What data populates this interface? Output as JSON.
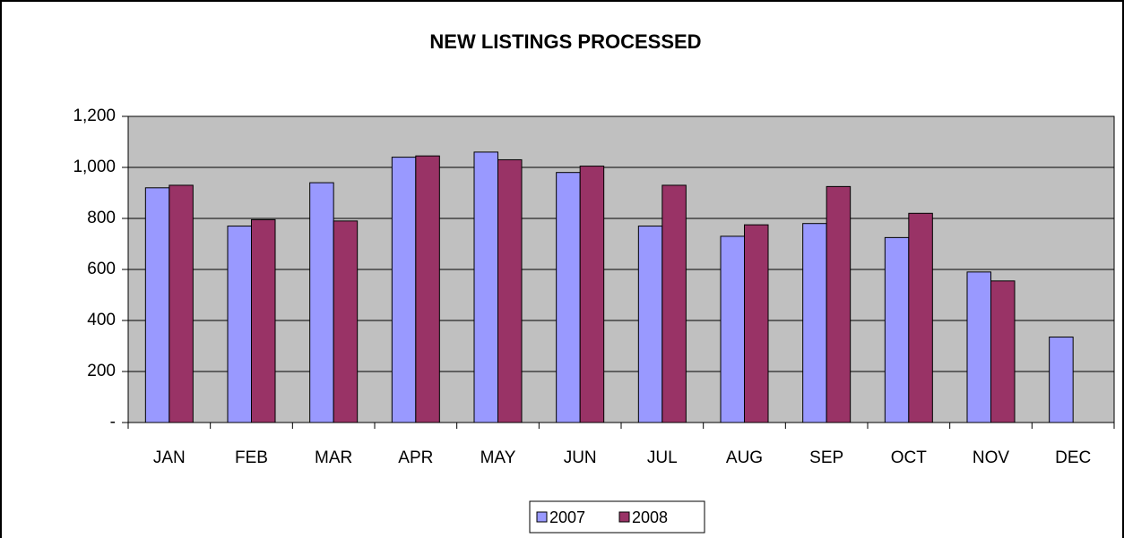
{
  "chart_data": {
    "type": "bar",
    "title": "NEW LISTINGS PROCESSED",
    "categories": [
      "JAN",
      "FEB",
      "MAR",
      "APR",
      "MAY",
      "JUN",
      "JUL",
      "AUG",
      "SEP",
      "OCT",
      "NOV",
      "DEC"
    ],
    "series": [
      {
        "name": "2007",
        "color": "#9999ff",
        "values": [
          920,
          770,
          940,
          1040,
          1060,
          980,
          770,
          730,
          780,
          725,
          590,
          335
        ]
      },
      {
        "name": "2008",
        "color": "#993366",
        "values": [
          930,
          795,
          790,
          1045,
          1030,
          1005,
          930,
          775,
          925,
          820,
          555,
          null
        ]
      }
    ],
    "ylim": [
      0,
      1200
    ],
    "yticks": [
      {
        "value": 0,
        "label": "-"
      },
      200,
      400,
      600,
      800,
      {
        "value": 1000,
        "label": "1,000"
      },
      {
        "value": 1200,
        "label": "1,200"
      }
    ],
    "grid": true,
    "legend": "bottom"
  }
}
